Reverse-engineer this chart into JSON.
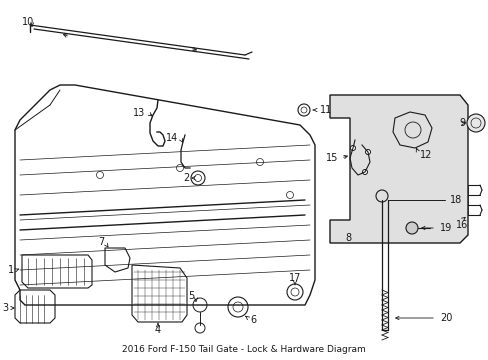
{
  "bg_color": "#ffffff",
  "line_color": "#1a1a1a",
  "figsize": [
    4.89,
    3.6
  ],
  "dpi": 100,
  "title": "2016 Ford F-150 Tail Gate - Lock & Hardware Diagram"
}
